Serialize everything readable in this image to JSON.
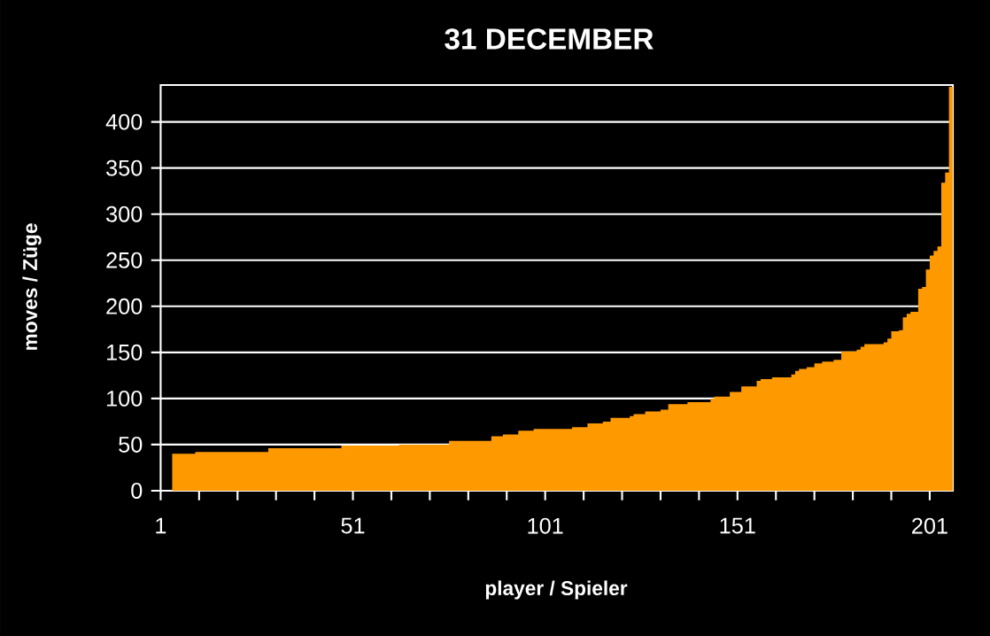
{
  "chart_data": {
    "type": "area",
    "title": "31 DECEMBER",
    "xlabel": "player / Spieler",
    "ylabel": "moves / Züge",
    "x": [
      4,
      5,
      6,
      7,
      8,
      9,
      10,
      11,
      12,
      13,
      14,
      15,
      16,
      17,
      18,
      19,
      20,
      21,
      22,
      23,
      24,
      25,
      26,
      27,
      28,
      29,
      30,
      31,
      32,
      33,
      34,
      35,
      36,
      37,
      38,
      39,
      40,
      41,
      42,
      43,
      44,
      45,
      46,
      47,
      48,
      49,
      50,
      51,
      52,
      53,
      54,
      55,
      56,
      57,
      58,
      59,
      60,
      61,
      62,
      63,
      64,
      65,
      66,
      67,
      68,
      69,
      70,
      71,
      72,
      73,
      74,
      75,
      76,
      77,
      78,
      79,
      80,
      81,
      82,
      83,
      84,
      85,
      86,
      87,
      88,
      89,
      90,
      91,
      92,
      93,
      94,
      95,
      96,
      97,
      98,
      99,
      100,
      101,
      102,
      103,
      104,
      105,
      106,
      107,
      108,
      109,
      110,
      111,
      112,
      113,
      114,
      115,
      116,
      117,
      118,
      119,
      120,
      121,
      122,
      123,
      124,
      125,
      126,
      127,
      128,
      129,
      130,
      131,
      132,
      133,
      134,
      135,
      136,
      137,
      138,
      139,
      140,
      141,
      142,
      143,
      144,
      145,
      146,
      147,
      148,
      149,
      150,
      151,
      152,
      153,
      154,
      155,
      156,
      157,
      158,
      159,
      160,
      161,
      162,
      163,
      164,
      165,
      166,
      167,
      168,
      169,
      170,
      171,
      172,
      173,
      174,
      175,
      176,
      177,
      178,
      179,
      180,
      181,
      182,
      183,
      184,
      185,
      186,
      187,
      188,
      189,
      190,
      191,
      192,
      193,
      194,
      195,
      196,
      197,
      198,
      199,
      200,
      201,
      202,
      203,
      204,
      205,
      206
    ],
    "values": [
      40,
      40,
      40,
      40,
      40,
      40,
      42,
      42,
      42,
      42,
      42,
      42,
      42,
      42,
      42,
      42,
      42,
      42,
      42,
      42,
      42,
      42,
      42,
      42,
      42,
      46,
      46,
      46,
      46,
      46,
      46,
      46,
      46,
      46,
      46,
      46,
      46,
      46,
      46,
      46,
      46,
      46,
      46,
      46,
      49,
      49,
      49,
      49,
      49,
      49,
      49,
      49,
      49,
      49,
      49,
      49,
      49,
      49,
      49,
      50,
      50,
      50,
      50,
      50,
      50,
      50,
      50,
      50,
      50,
      50,
      50,
      50,
      54,
      54,
      54,
      54,
      54,
      54,
      54,
      54,
      54,
      54,
      54,
      59,
      59,
      59,
      61,
      61,
      61,
      61,
      65,
      65,
      65,
      65,
      67,
      67,
      67,
      67,
      67,
      67,
      67,
      67,
      67,
      67,
      69,
      69,
      69,
      69,
      73,
      73,
      73,
      73,
      75,
      75,
      79,
      79,
      79,
      79,
      79,
      81,
      83,
      83,
      83,
      86,
      86,
      86,
      86,
      88,
      88,
      94,
      94,
      94,
      94,
      94,
      96,
      96,
      96,
      96,
      96,
      96,
      100,
      102,
      102,
      102,
      102,
      107,
      107,
      107,
      113,
      113,
      113,
      113,
      119,
      121,
      121,
      121,
      123,
      123,
      123,
      123,
      123,
      126,
      130,
      132,
      132,
      134,
      134,
      138,
      138,
      140,
      140,
      140,
      142,
      142,
      151,
      151,
      151,
      151,
      153,
      156,
      159,
      159,
      159,
      159,
      159,
      161,
      165,
      173,
      173,
      174,
      188,
      192,
      194,
      194,
      219,
      221,
      240,
      255,
      260,
      265,
      334,
      345,
      438
    ],
    "color": "#ff9900",
    "xlim": [
      1,
      207
    ],
    "xticks": [
      1,
      {
        "value": 11,
        "label": null
      },
      {
        "value": 21,
        "label": null
      },
      {
        "value": 31,
        "label": null
      },
      {
        "value": 41,
        "label": null
      },
      51,
      {
        "value": 61,
        "label": null
      },
      {
        "value": 71,
        "label": null
      },
      {
        "value": 81,
        "label": null
      },
      {
        "value": 91,
        "label": null
      },
      101,
      {
        "value": 111,
        "label": null
      },
      {
        "value": 121,
        "label": null
      },
      {
        "value": 131,
        "label": null
      },
      {
        "value": 141,
        "label": null
      },
      151,
      {
        "value": 161,
        "label": null
      },
      {
        "value": 171,
        "label": null
      },
      {
        "value": 181,
        "label": null
      },
      {
        "value": 191,
        "label": null
      },
      201
    ],
    "ylim": [
      0,
      440
    ],
    "yticks": [
      0,
      50,
      100,
      150,
      200,
      250,
      300,
      350,
      400
    ],
    "grid": "y"
  }
}
